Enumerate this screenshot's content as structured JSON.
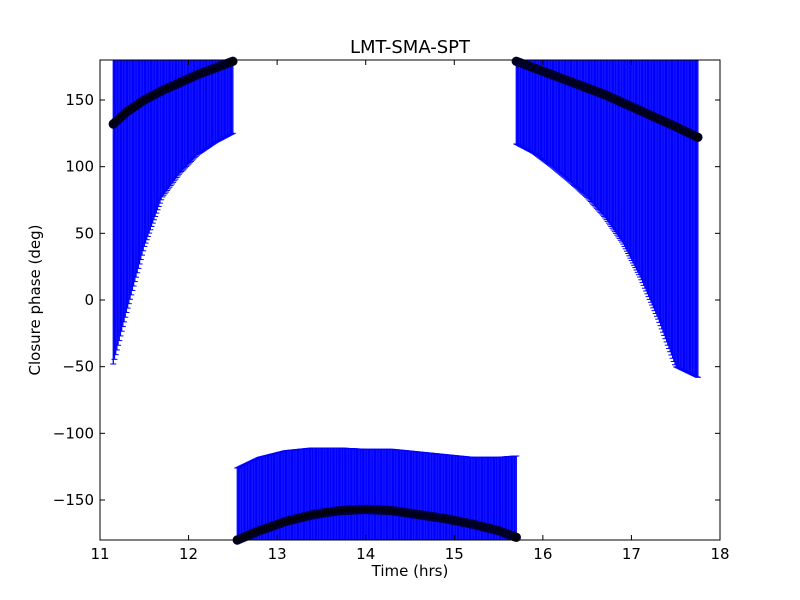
{
  "chart_data": {
    "type": "scatter",
    "title": "LMT-SMA-SPT",
    "xlabel": "Time (hrs)",
    "ylabel": "Closure phase (deg)",
    "xlim": [
      11,
      18
    ],
    "ylim": [
      -180,
      180
    ],
    "xticks": [
      11,
      12,
      13,
      14,
      15,
      16,
      17,
      18
    ],
    "yticks": [
      -150,
      -100,
      -50,
      0,
      50,
      100,
      150
    ],
    "xtick_labels": [
      "11",
      "12",
      "13",
      "14",
      "15",
      "16",
      "17",
      "18"
    ],
    "ytick_labels": [
      "−150",
      "−100",
      "−50",
      "0",
      "50",
      "100",
      "150"
    ],
    "grid": false,
    "colors": {
      "points": "#000000",
      "point_edge": "#00003a",
      "errorbars": "#0000ff"
    },
    "segments": [
      {
        "x": [
          11.15,
          11.3,
          11.5,
          11.7,
          11.9,
          12.1,
          12.3,
          12.5
        ],
        "y": [
          132,
          141,
          150,
          157,
          163,
          169,
          174,
          179
        ],
        "err_low": [
          180,
          150,
          110,
          80,
          68,
          60,
          56,
          54
        ],
        "err_high": [
          180,
          180,
          180,
          180,
          180,
          180,
          180,
          180
        ]
      },
      {
        "x": [
          12.55,
          12.8,
          13.1,
          13.4,
          13.7,
          14.0,
          14.3,
          14.6,
          14.9,
          15.2,
          15.5,
          15.7
        ],
        "y": [
          -180,
          -173,
          -166,
          -161,
          -158,
          -157,
          -158,
          -161,
          -164,
          -168,
          -173,
          -178
        ],
        "err_low": [
          0,
          7,
          14,
          19,
          22,
          23,
          22,
          19,
          16,
          12,
          7,
          2
        ],
        "err_high": [
          54,
          55,
          53,
          50,
          47,
          45,
          46,
          47,
          48,
          50,
          55,
          61
        ]
      },
      {
        "x": [
          15.7,
          15.9,
          16.1,
          16.3,
          16.5,
          16.7,
          16.9,
          17.1,
          17.3,
          17.5,
          17.75
        ],
        "y": [
          179,
          174,
          169,
          164,
          159,
          154,
          148,
          142,
          136,
          130,
          122
        ],
        "err_low": [
          62,
          64,
          69,
          75,
          82,
          92,
          105,
          125,
          150,
          180,
          180
        ],
        "err_high": [
          180,
          180,
          180,
          180,
          180,
          180,
          180,
          180,
          180,
          180,
          180
        ]
      }
    ]
  }
}
